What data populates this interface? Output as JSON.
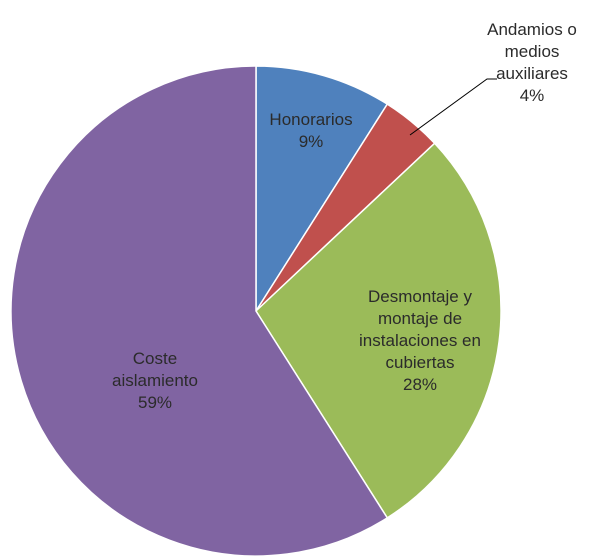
{
  "chart_data": {
    "type": "pie",
    "start_angle_deg": 0,
    "direction": "clockwise",
    "legend": "none",
    "slices": [
      {
        "name": "Honorarios",
        "value": 9,
        "display": "9%",
        "label_lines": [
          "Honorarios",
          "9%"
        ],
        "label_position": "inside",
        "color": "#4F81BD"
      },
      {
        "name": "Andamios o medios auxiliares",
        "value": 4,
        "display": "4%",
        "label_lines": [
          "Andamios o",
          "medios",
          "auxiliares",
          "4%"
        ],
        "label_position": "outside",
        "color": "#C0504D"
      },
      {
        "name": "Desmontaje y montaje de instalaciones en cubiertas",
        "value": 28,
        "display": "28%",
        "label_lines": [
          "Desmontaje y",
          "montaje de",
          "instalaciones en",
          "cubiertas",
          "28%"
        ],
        "label_position": "inside",
        "color": "#9BBB59"
      },
      {
        "name": "Coste aislamiento",
        "value": 59,
        "display": "59%",
        "label_lines": [
          "Coste",
          "aislamiento",
          "59%"
        ],
        "label_position": "inside",
        "color": "#8064A2"
      }
    ]
  }
}
